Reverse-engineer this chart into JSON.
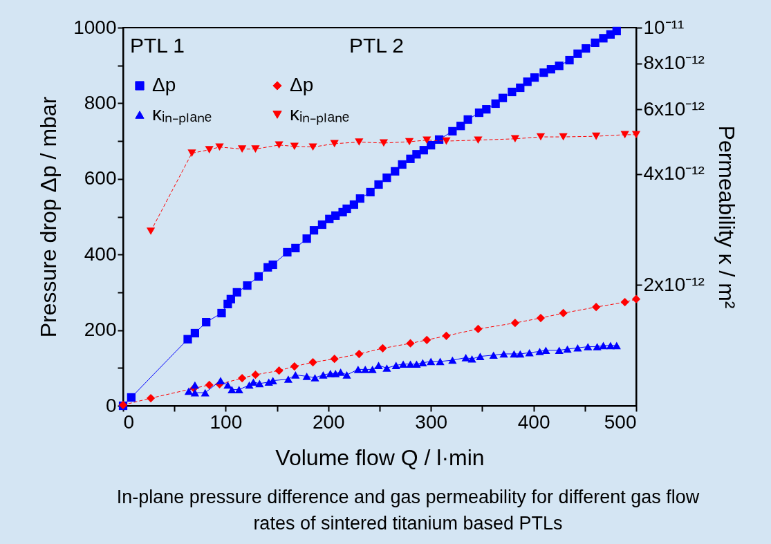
{
  "chart_data": {
    "type": "line",
    "xlabel": "Volume flow Q / l·min",
    "ylabel": "Pressure drop Δp / mbar",
    "y2label": "Permeability κ / m²",
    "annotations": [
      "PTL 1",
      "PTL 2",
      "In-plane pressure difference and gas permeability for different gas flow rates of sintered titanium based PTLs"
    ],
    "xlim": [
      0,
      500
    ],
    "xticks": [
      0,
      {
        "value": 50,
        "label": null
      },
      100,
      {
        "value": 150,
        "label": null
      },
      200,
      {
        "value": 250,
        "label": null
      },
      300,
      {
        "value": 350,
        "label": null
      },
      400,
      {
        "value": 450,
        "label": null
      },
      500
    ],
    "ylim": [
      0,
      1000
    ],
    "yticks": [
      0,
      {
        "value": 100,
        "label": null
      },
      200,
      {
        "value": 300,
        "label": null
      },
      400,
      {
        "value": 500,
        "label": null
      },
      600,
      {
        "value": 700,
        "label": null
      },
      800,
      {
        "value": 900,
        "label": null
      },
      1000
    ],
    "y2lim": [
      9.4e-13,
      1e-11
    ],
    "y2ticks": [
      {
        "value": 1e-11,
        "label": "10⁻¹¹"
      },
      {
        "value": 8e-12,
        "label": "8x10⁻¹²"
      },
      {
        "value": 6e-12,
        "label": "6x10⁻¹²"
      },
      {
        "value": 4e-12,
        "label": "4x10⁻¹²"
      },
      {
        "value": 2e-12,
        "label": "2x10⁻¹²"
      }
    ],
    "log": "y2",
    "grid": false,
    "legend": "top left",
    "series": [
      {
        "name": "Δp",
        "color": "#0000ff",
        "marker": "square",
        "line_style": "solid",
        "x": [
          0,
          8,
          63,
          70,
          81,
          96,
          102,
          105,
          111,
          121,
          132,
          141,
          146,
          160,
          168,
          179,
          186,
          194,
          201,
          207,
          214,
          218,
          225,
          231,
          241,
          249,
          257,
          265,
          272,
          280,
          286,
          293,
          300,
          308,
          321,
          329,
          336,
          347,
          354,
          363,
          370,
          379,
          387,
          394,
          401,
          410,
          417,
          425,
          435,
          443,
          451,
          460,
          468,
          475,
          481
        ],
        "values": [
          0,
          22,
          176,
          192,
          221,
          245,
          269,
          282,
          300,
          318,
          342,
          366,
          373,
          406,
          417,
          442,
          464,
          479,
          494,
          503,
          512,
          521,
          532,
          548,
          565,
          585,
          603,
          620,
          638,
          653,
          665,
          676,
          689,
          704,
          726,
          740,
          757,
          775,
          784,
          799,
          814,
          830,
          841,
          857,
          868,
          881,
          890,
          899,
          914,
          931,
          945,
          960,
          972,
          982,
          991
        ]
      },
      {
        "name": "κᵢₙ₋ₚₗₐₙₑ",
        "color": "#0000ff",
        "marker": "triangle",
        "line_style": "solid",
        "axis": "y2",
        "x": [
          64,
          70,
          70,
          80,
          95,
          102,
          106,
          113,
          123,
          127,
          133,
          142,
          146,
          161,
          168,
          179,
          187,
          195,
          202,
          207,
          212,
          218,
          229,
          236,
          243,
          249,
          257,
          266,
          273,
          280,
          286,
          292,
          300,
          309,
          321,
          334,
          340,
          348,
          361,
          371,
          381,
          387,
          396,
          406,
          412,
          425,
          433,
          443,
          453,
          462,
          468,
          475,
          481
        ],
        "values": [
          1.03e-12,
          1.07e-12,
          1.02e-12,
          1.02e-12,
          1.1e-12,
          1.07e-12,
          1.04e-12,
          1.04e-12,
          1.07e-12,
          1.09e-12,
          1.08e-12,
          1.09e-12,
          1.1e-12,
          1.11e-12,
          1.14e-12,
          1.13e-12,
          1.12e-12,
          1.14e-12,
          1.15e-12,
          1.15e-12,
          1.16e-12,
          1.14e-12,
          1.18e-12,
          1.18e-12,
          1.18e-12,
          1.21e-12,
          1.19e-12,
          1.21e-12,
          1.22e-12,
          1.22e-12,
          1.22e-12,
          1.23e-12,
          1.24e-12,
          1.24e-12,
          1.25e-12,
          1.27e-12,
          1.26e-12,
          1.28e-12,
          1.29e-12,
          1.3e-12,
          1.3e-12,
          1.3e-12,
          1.31e-12,
          1.32e-12,
          1.33e-12,
          1.33e-12,
          1.34e-12,
          1.35e-12,
          1.36e-12,
          1.36e-12,
          1.37e-12,
          1.37e-12,
          1.37e-12
        ]
      },
      {
        "name": "Δp",
        "color": "#ff0000",
        "marker": "diamond",
        "line_style": "dashed",
        "x": [
          0,
          27,
          69,
          84,
          94,
          116,
          129,
          152,
          167,
          185,
          206,
          230,
          253,
          280,
          296,
          315,
          346,
          382,
          407,
          429,
          461,
          489,
          500
        ],
        "values": [
          2,
          20,
          46,
          55,
          57,
          73,
          82,
          93,
          104,
          115,
          124,
          137,
          152,
          165,
          174,
          185,
          203,
          219,
          232,
          245,
          261,
          274,
          282
        ]
      },
      {
        "name": "κᵢₙ₋ₚₗₐₙₑ",
        "color": "#ff0000",
        "marker": "triangle-down",
        "line_style": "dashed",
        "axis": "y2",
        "x": [
          27,
          67,
          84,
          94,
          116,
          129,
          152,
          167,
          185,
          206,
          230,
          254,
          279,
          296,
          315,
          346,
          382,
          407,
          429,
          461,
          489,
          500
        ],
        "values": [
          2.8e-12,
          4.56e-12,
          4.66e-12,
          4.74e-12,
          4.68e-12,
          4.68e-12,
          4.8e-12,
          4.76e-12,
          4.74e-12,
          4.84e-12,
          4.89e-12,
          4.86e-12,
          4.9e-12,
          4.95e-12,
          4.92e-12,
          4.95e-12,
          4.99e-12,
          5.05e-12,
          5.05e-12,
          5.07e-12,
          5.12e-12,
          5.12e-12
        ]
      }
    ]
  }
}
